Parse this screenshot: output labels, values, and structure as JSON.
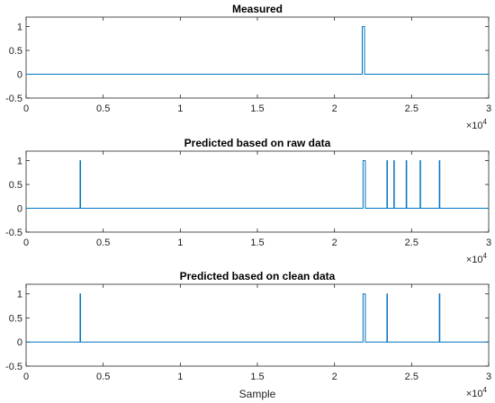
{
  "chart_data": [
    {
      "type": "line",
      "title": "Measured",
      "xlabel": "",
      "ylabel": "",
      "xlim": [
        0,
        30000
      ],
      "ylim": [
        -0.5,
        1.2
      ],
      "x_ticks": [
        "0",
        "0.5",
        "1",
        "1.5",
        "2",
        "2.5",
        "3"
      ],
      "y_ticks": [
        "-0.5",
        "0",
        "0.5",
        "1"
      ],
      "x_exponent": "4",
      "grid": false,
      "color": "#0072BD",
      "baseline": 0,
      "pulses": [
        [
          21800,
          21950
        ]
      ]
    },
    {
      "type": "line",
      "title": "Predicted based on raw data",
      "xlabel": "",
      "ylabel": "",
      "xlim": [
        0,
        30000
      ],
      "ylim": [
        -0.5,
        1.2
      ],
      "x_ticks": [
        "0",
        "0.5",
        "1",
        "1.5",
        "2",
        "2.5",
        "3"
      ],
      "y_ticks": [
        "-0.5",
        "0",
        "0.5",
        "1"
      ],
      "x_exponent": "4",
      "grid": false,
      "color": "#0072BD",
      "baseline": 0,
      "pulses": [
        [
          3500,
          3530
        ],
        [
          21850,
          22000
        ],
        [
          23400,
          23430
        ],
        [
          23850,
          23880
        ],
        [
          24650,
          24680
        ],
        [
          25550,
          25580
        ],
        [
          26800,
          26830
        ]
      ]
    },
    {
      "type": "line",
      "title": "Predicted based on clean data",
      "xlabel": "Sample",
      "ylabel": "",
      "xlim": [
        0,
        30000
      ],
      "ylim": [
        -0.5,
        1.2
      ],
      "x_ticks": [
        "0",
        "0.5",
        "1",
        "1.5",
        "2",
        "2.5",
        "3"
      ],
      "y_ticks": [
        "-0.5",
        "0",
        "0.5",
        "1"
      ],
      "x_exponent": "4",
      "grid": false,
      "color": "#0072BD",
      "baseline": 0,
      "pulses": [
        [
          3500,
          3530
        ],
        [
          21850,
          22000
        ],
        [
          23400,
          23430
        ],
        [
          26800,
          26830
        ]
      ]
    }
  ]
}
